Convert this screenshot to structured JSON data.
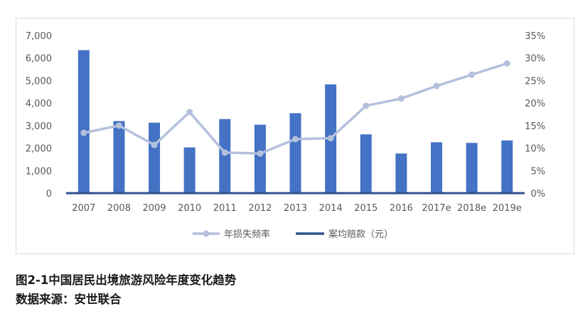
{
  "chart_data": {
    "type": "bar",
    "categories": [
      "2007",
      "2008",
      "2009",
      "2010",
      "2011",
      "2012",
      "2013",
      "2014",
      "2015",
      "2016",
      "2017e",
      "2018e",
      "2019e"
    ],
    "series": [
      {
        "name": "案均赔款（元）",
        "type": "bar",
        "axis": "left",
        "color": "#4472c4",
        "values": [
          6350,
          3200,
          3130,
          2030,
          3290,
          3040,
          3550,
          4830,
          2610,
          1760,
          2260,
          2230,
          2340
        ]
      },
      {
        "name": "年损失频率",
        "type": "line",
        "axis": "right",
        "color": "#b4c0dc",
        "values": [
          13.4,
          15.0,
          10.7,
          18.0,
          9.0,
          8.8,
          12.0,
          12.2,
          19.4,
          21.0,
          23.8,
          26.3,
          28.8
        ]
      }
    ],
    "y_left": {
      "ylim": [
        0,
        7000
      ],
      "ticks": [
        "0",
        "1,000",
        "2,000",
        "3,000",
        "4,000",
        "5,000",
        "6,000",
        "7,000"
      ]
    },
    "y_right": {
      "ylim": [
        0,
        35
      ],
      "ticks": [
        "0%",
        "5%",
        "10%",
        "15%",
        "20%",
        "25%",
        "30%",
        "35%"
      ]
    },
    "legend_position": "bottom",
    "grid": false
  },
  "caption": {
    "title": "图2-1中国居民出境旅游风险年度变化趋势",
    "source": "数据来源：安世联合"
  }
}
